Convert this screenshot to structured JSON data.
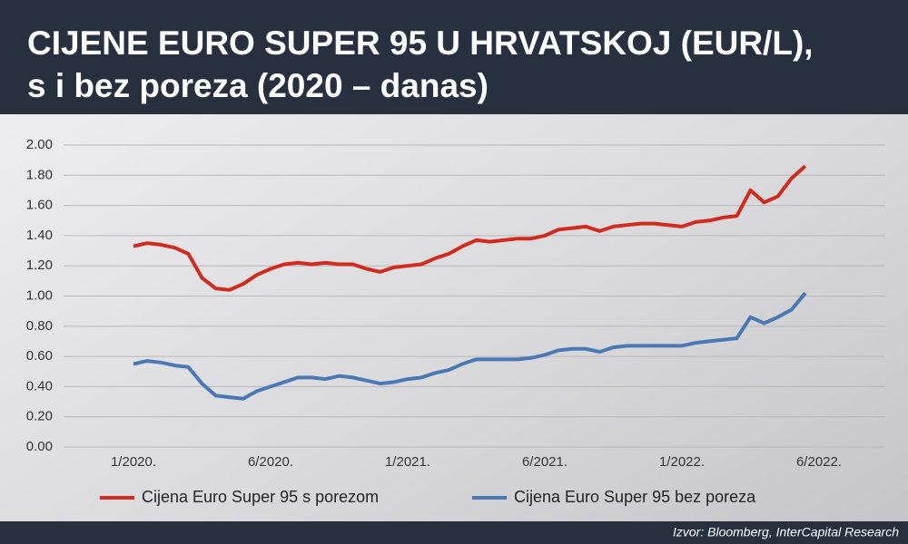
{
  "chart_data": {
    "type": "line",
    "title": [
      "CIJENE EURO SUPER 95 U HRVATSKOJ (EUR/L),",
      "s i bez poreza (2020 – danas)"
    ],
    "source": "Izvor: Bloomberg, InterCapital Research",
    "categories": [
      "1/2020.",
      null,
      null,
      null,
      null,
      null,
      null,
      null,
      null,
      null,
      "6/2020.",
      null,
      null,
      null,
      null,
      null,
      null,
      null,
      null,
      null,
      "1/2021.",
      null,
      null,
      null,
      null,
      null,
      null,
      null,
      null,
      null,
      "6/2021.",
      null,
      null,
      null,
      null,
      null,
      null,
      null,
      null,
      null,
      "1/2022.",
      null,
      null,
      null,
      null,
      null,
      null,
      null,
      null,
      null,
      "6/2022."
    ],
    "series": [
      {
        "name": "Cijena Euro Super 95 s porezom",
        "color": "#d12a1e",
        "values": [
          1.33,
          1.35,
          1.34,
          1.32,
          1.28,
          1.12,
          1.05,
          1.04,
          1.08,
          1.14,
          1.18,
          1.21,
          1.22,
          1.21,
          1.22,
          1.21,
          1.21,
          1.18,
          1.16,
          1.19,
          1.2,
          1.21,
          1.25,
          1.28,
          1.33,
          1.37,
          1.36,
          1.37,
          1.38,
          1.38,
          1.4,
          1.44,
          1.45,
          1.46,
          1.43,
          1.46,
          1.47,
          1.48,
          1.48,
          1.47,
          1.46,
          1.49,
          1.5,
          1.52,
          1.53,
          1.7,
          1.62,
          1.66,
          1.78,
          1.86,
          null
        ]
      },
      {
        "name": "Cijena Euro Super 95 bez poreza",
        "color": "#4a78b4",
        "values": [
          0.55,
          0.57,
          0.56,
          0.54,
          0.53,
          0.42,
          0.34,
          0.33,
          0.32,
          0.37,
          0.4,
          0.43,
          0.46,
          0.46,
          0.45,
          0.47,
          0.46,
          0.44,
          0.42,
          0.43,
          0.45,
          0.46,
          0.49,
          0.51,
          0.55,
          0.58,
          0.58,
          0.58,
          0.58,
          0.59,
          0.61,
          0.64,
          0.65,
          0.65,
          0.63,
          0.66,
          0.67,
          0.67,
          0.67,
          0.67,
          0.67,
          0.69,
          0.7,
          0.71,
          0.72,
          0.86,
          0.82,
          0.86,
          0.91,
          1.02,
          null
        ]
      }
    ],
    "ylim": [
      0,
      2
    ],
    "yticks": [
      {
        "value": 0,
        "label": "0.00"
      },
      {
        "value": 0.2,
        "label": "0.20"
      },
      {
        "value": 0.4,
        "label": "0.40"
      },
      {
        "value": 0.6,
        "label": "0.60"
      },
      {
        "value": 0.8,
        "label": "0.80"
      },
      {
        "value": 1,
        "label": "1.00"
      },
      {
        "value": 1.2,
        "label": "1.20"
      },
      {
        "value": 1.4,
        "label": "1.40"
      },
      {
        "value": 1.6,
        "label": "1.60"
      },
      {
        "value": 1.8,
        "label": "1.80"
      },
      {
        "value": 2,
        "label": "2.00"
      }
    ],
    "grid": true
  }
}
